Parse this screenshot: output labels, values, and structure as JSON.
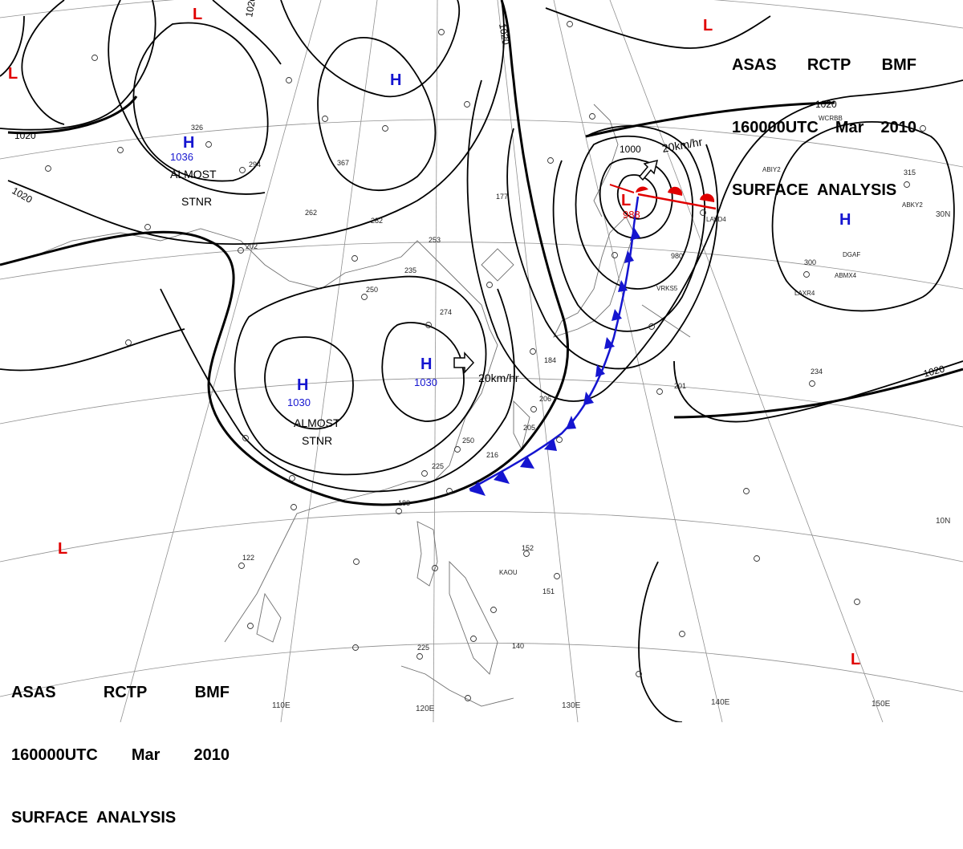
{
  "header": {
    "line1": [
      "ASAS",
      "RCTP",
      "BMF"
    ],
    "line2": [
      "160000UTC",
      "Mar",
      "2010"
    ],
    "line3": "SURFACE  ANALYSIS"
  },
  "colors": {
    "high": "#1515d0",
    "low": "#e00000",
    "cold_front": "#1515d0",
    "warm_front": "#e00000",
    "isobar": "#000000",
    "grid": "#909090",
    "coast": "#707070"
  },
  "longitude_labels": [
    "110E",
    "120E",
    "130E",
    "140E",
    "150E"
  ],
  "latitude_labels": [
    "30N",
    "10N"
  ],
  "isobar_labels": [
    "1020",
    "1020",
    "1020",
    "1020",
    "1020",
    "1020",
    "1000"
  ],
  "pressure_centers": [
    {
      "type": "H",
      "value": "1036",
      "note": [
        "ALMOST",
        "STNR"
      ]
    },
    {
      "type": "H",
      "value": "1030",
      "note": [
        "ALMOST",
        "STNR"
      ]
    },
    {
      "type": "H",
      "value": "1030",
      "note": []
    },
    {
      "type": "H",
      "value": "",
      "note": []
    },
    {
      "type": "H",
      "value": "",
      "note": []
    },
    {
      "type": "L",
      "value": "988",
      "note": []
    }
  ],
  "motion_labels": [
    "20km/hr",
    "20km/hr"
  ],
  "extra_lows": [
    "L",
    "L",
    "L",
    "L",
    "L"
  ],
  "station_labels": [
    "KAOU",
    "ABMX4",
    "DGAF",
    "LAXR4",
    "ABIY2",
    "ABKY2",
    "WCRBB",
    "VRKS5",
    "LAVD4"
  ],
  "station_values": [
    "326",
    "294",
    "367",
    "262",
    "282",
    "253",
    "235",
    "250",
    "274",
    "202",
    "188",
    "152",
    "205",
    "206",
    "234",
    "201",
    "300",
    "315",
    "980",
    "151",
    "122",
    "140",
    "177",
    "250",
    "225",
    "225",
    "216",
    "184"
  ]
}
